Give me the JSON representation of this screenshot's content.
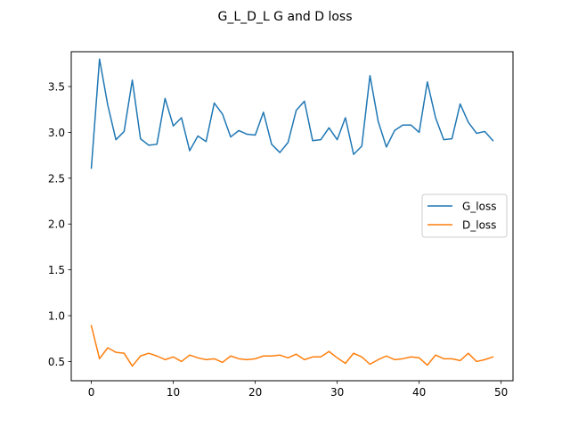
{
  "chart_data": {
    "type": "line",
    "title": "G_L_D_L G and D loss",
    "xlabel": "",
    "ylabel": "",
    "xlim": [
      -2.45,
      51.45
    ],
    "ylim": [
      0.29,
      3.88
    ],
    "xticks": [
      0,
      10,
      20,
      30,
      40,
      50
    ],
    "yticks": [
      0.5,
      1.0,
      1.5,
      2.0,
      2.5,
      3.0,
      3.5
    ],
    "ytick_labels": [
      "0.5",
      "1.0",
      "1.5",
      "2.0",
      "2.5",
      "3.0",
      "3.5"
    ],
    "grid": false,
    "legend_position": "center-right",
    "x": [
      0,
      1,
      2,
      3,
      4,
      5,
      6,
      7,
      8,
      9,
      10,
      11,
      12,
      13,
      14,
      15,
      16,
      17,
      18,
      19,
      20,
      21,
      22,
      23,
      24,
      25,
      26,
      27,
      28,
      29,
      30,
      31,
      32,
      33,
      34,
      35,
      36,
      37,
      38,
      39,
      40,
      41,
      42,
      43,
      44,
      45,
      46,
      47,
      48,
      49
    ],
    "series": [
      {
        "name": "G_loss",
        "color": "#1f77b4",
        "values": [
          2.61,
          3.8,
          3.3,
          2.92,
          3.01,
          3.57,
          2.93,
          2.86,
          2.87,
          3.37,
          3.07,
          3.16,
          2.8,
          2.96,
          2.9,
          3.32,
          3.2,
          2.95,
          3.02,
          2.98,
          2.97,
          3.22,
          2.87,
          2.78,
          2.89,
          3.24,
          3.34,
          2.91,
          2.92,
          3.05,
          2.92,
          3.16,
          2.76,
          2.85,
          3.62,
          3.12,
          2.84,
          3.02,
          3.08,
          3.08,
          3.0,
          3.55,
          3.16,
          2.92,
          2.93,
          3.31,
          3.11,
          2.99,
          3.01,
          2.91
        ]
      },
      {
        "name": "D_loss",
        "color": "#ff7f0e",
        "values": [
          0.89,
          0.53,
          0.65,
          0.6,
          0.59,
          0.45,
          0.56,
          0.59,
          0.56,
          0.52,
          0.55,
          0.5,
          0.57,
          0.54,
          0.52,
          0.53,
          0.49,
          0.56,
          0.53,
          0.52,
          0.53,
          0.56,
          0.56,
          0.57,
          0.54,
          0.58,
          0.52,
          0.55,
          0.55,
          0.61,
          0.54,
          0.48,
          0.59,
          0.55,
          0.47,
          0.52,
          0.56,
          0.52,
          0.53,
          0.55,
          0.54,
          0.46,
          0.57,
          0.53,
          0.53,
          0.51,
          0.59,
          0.5,
          0.52,
          0.55
        ]
      }
    ]
  }
}
